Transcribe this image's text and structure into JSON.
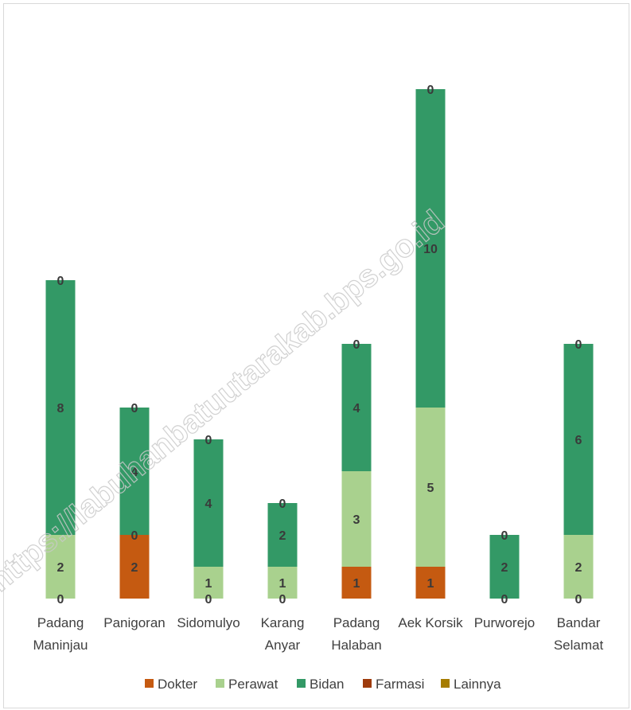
{
  "chart_data": {
    "type": "bar",
    "stacked": true,
    "title": "",
    "xlabel": "",
    "ylabel": "",
    "ylim": [
      0,
      16
    ],
    "grid": false,
    "legend_position": "bottom",
    "categories": [
      [
        "Padang",
        "Maninjau"
      ],
      [
        "Panigoran"
      ],
      [
        "Sidomulyo"
      ],
      [
        "Karang",
        "Anyar"
      ],
      [
        "Padang",
        "Halaban"
      ],
      [
        "Aek Korsik"
      ],
      [
        "Purworejo"
      ],
      [
        "Bandar",
        "Selamat"
      ]
    ],
    "series": [
      {
        "name": "Dokter",
        "color": "#c55a11",
        "values": [
          0,
          2,
          0,
          0,
          1,
          1,
          0,
          0
        ]
      },
      {
        "name": "Perawat",
        "color": "#a9d18e",
        "values": [
          2,
          0,
          1,
          1,
          3,
          5,
          0,
          2
        ]
      },
      {
        "name": "Bidan",
        "color": "#339966",
        "values": [
          8,
          4,
          4,
          2,
          4,
          10,
          2,
          6
        ]
      },
      {
        "name": "Farmasi",
        "color": "#9e3b0c",
        "values": [
          0,
          0,
          0,
          0,
          0,
          0,
          0,
          0
        ]
      },
      {
        "name": "Lainnya",
        "color": "#a67c00",
        "values": [
          0,
          0,
          0,
          0,
          0,
          0,
          0,
          0
        ]
      }
    ],
    "data_labels": [
      [
        {
          "series": 0,
          "text": "0"
        },
        {
          "series": 1,
          "text": "2"
        },
        {
          "series": 2,
          "text": "8"
        },
        {
          "series": 4,
          "text": "0"
        }
      ],
      [
        {
          "series": 0,
          "text": "2"
        },
        {
          "series": 1,
          "text": "0"
        },
        {
          "series": 2,
          "text": "4"
        },
        {
          "series": 4,
          "text": "0"
        }
      ],
      [
        {
          "series": 0,
          "text": "0"
        },
        {
          "series": 1,
          "text": "1"
        },
        {
          "series": 2,
          "text": "4"
        },
        {
          "series": 4,
          "text": "0"
        }
      ],
      [
        {
          "series": 0,
          "text": "0"
        },
        {
          "series": 1,
          "text": "1"
        },
        {
          "series": 2,
          "text": "2"
        },
        {
          "series": 4,
          "text": "0"
        }
      ],
      [
        {
          "series": 0,
          "text": "1"
        },
        {
          "series": 1,
          "text": "3"
        },
        {
          "series": 2,
          "text": "4"
        },
        {
          "series": 4,
          "text": "0"
        }
      ],
      [
        {
          "series": 0,
          "text": "1"
        },
        {
          "series": 1,
          "text": "5"
        },
        {
          "series": 2,
          "text": "10"
        },
        {
          "series": 4,
          "text": "0"
        }
      ],
      [
        {
          "series": 0,
          "text": "0"
        },
        {
          "series": 2,
          "text": "2"
        },
        {
          "series": 4,
          "text": "0"
        }
      ],
      [
        {
          "series": 0,
          "text": "0"
        },
        {
          "series": 1,
          "text": "2"
        },
        {
          "series": 2,
          "text": "6"
        },
        {
          "series": 4,
          "text": "0"
        }
      ]
    ]
  },
  "watermark": "https://labuhanbatuutarakab.bps.go.id"
}
